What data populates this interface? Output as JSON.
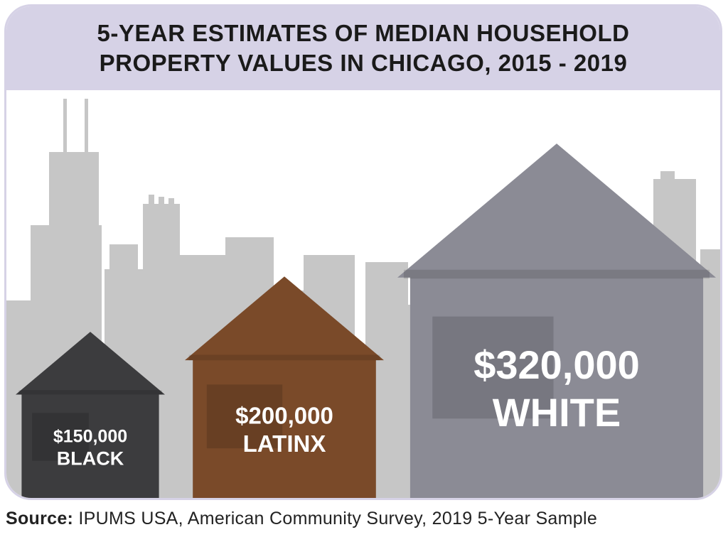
{
  "title": "5-YEAR ESTIMATES OF MEDIAN HOUSEHOLD PROPERTY VALUES IN CHICAGO, 2015 - 2019",
  "source": {
    "lead": "Source:",
    "text": " IPUMS USA, American Community Survey, 2019 5-Year Sample"
  },
  "colors": {
    "header_band": "#d6d2e6",
    "skyline": "#c6c6c6",
    "black_house": "#3c3c3e",
    "latinx_house": "#7a4a29",
    "white_house": "#8b8b95"
  },
  "chart_data": {
    "type": "bar",
    "title": "5-YEAR ESTIMATES OF MEDIAN HOUSEHOLD PROPERTY VALUES IN CHICAGO, 2015 - 2019",
    "categories": [
      "BLACK",
      "LATINX",
      "WHITE"
    ],
    "values": [
      150000,
      200000,
      320000
    ],
    "value_labels": [
      "$150,000",
      "$200,000",
      "$320,000"
    ],
    "ylim": [
      0,
      340000
    ],
    "grid": false,
    "legend": "none"
  }
}
